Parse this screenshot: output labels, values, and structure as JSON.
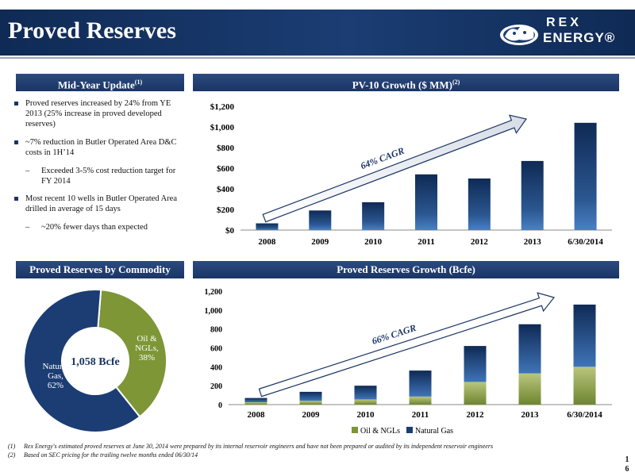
{
  "header": {
    "title": "Proved Reserves",
    "logo_line1": "REX",
    "logo_line2": "ENERGY®"
  },
  "sections": {
    "mid_year": "Mid-Year Update",
    "mid_year_sup": "(1)",
    "pv10": "PV-10 Growth ($ MM)",
    "pv10_sup": "(2)",
    "by_commodity": "Proved Reserves by Commodity",
    "reserves_growth": "Proved Reserves Growth (Bcfe)"
  },
  "bullets": [
    {
      "level": 1,
      "text": "Proved reserves increased by 24% from YE 2013 (25% increase in proved developed reserves)"
    },
    {
      "level": 1,
      "text": "~7% reduction in Butler Operated Area D&C costs in 1H’14"
    },
    {
      "level": 2,
      "text": "Exceeded 3-5% cost reduction target for FY 2014"
    },
    {
      "level": 1,
      "text": "Most recent 10 wells in Butler Operated Area drilled in average of 15 days"
    },
    {
      "level": 2,
      "text": "~20% fewer days than expected"
    }
  ],
  "chart_data": [
    {
      "type": "bar",
      "title": "PV-10 Growth ($ MM)",
      "categories": [
        "2008",
        "2009",
        "2010",
        "2011",
        "2012",
        "2013",
        "6/30/2014"
      ],
      "values": [
        65,
        190,
        270,
        540,
        500,
        670,
        1040
      ],
      "ylim": [
        0,
        1200
      ],
      "yticks": [
        "$0",
        "$200",
        "$400",
        "$600",
        "$800",
        "$1,000",
        "$1,200"
      ],
      "ytick_values": [
        0,
        200,
        400,
        600,
        800,
        1000,
        1200
      ],
      "annotation": "64% CAGR",
      "colors": {
        "bar_top": "#0f2a55",
        "bar_bottom": "#3b6fb3"
      }
    },
    {
      "type": "pie",
      "title": "Proved Reserves by Commodity",
      "center_label": "1,058 Bcfe",
      "slices": [
        {
          "label_line1": "Oil &",
          "label_line2": "NGLs,",
          "label_line3": "38%",
          "value": 38,
          "color": "#7e9636"
        },
        {
          "label_line1": "Natural",
          "label_line2": "Gas,",
          "label_line3": "62%",
          "value": 62,
          "color": "#1b3d73"
        }
      ]
    },
    {
      "type": "bar",
      "title": "Proved Reserves Growth (Bcfe)",
      "categories": [
        "2008",
        "2009",
        "2010",
        "2011",
        "2012",
        "2013",
        "6/30/2014"
      ],
      "series": [
        {
          "name": "Oil & NGLs",
          "values": [
            25,
            40,
            55,
            85,
            240,
            330,
            400
          ],
          "color": "#7e9636"
        },
        {
          "name": "Natural Gas",
          "values": [
            45,
            95,
            145,
            275,
            380,
            520,
            658
          ],
          "color": "#1b3d73"
        }
      ],
      "ylim": [
        0,
        1200
      ],
      "yticks": [
        "0",
        "200",
        "400",
        "600",
        "800",
        "1,000",
        "1,200"
      ],
      "ytick_values": [
        0,
        200,
        400,
        600,
        800,
        1000,
        1200
      ],
      "annotation": "66% CAGR",
      "legend": "bottom"
    }
  ],
  "footnotes": [
    {
      "num": "(1)",
      "text": "Rex Energy's estimated proved reserves at June 30, 2014 were prepared by its internal reservoir engineers and have not been prepared or audited by its independent reservoir engineers"
    },
    {
      "num": "(2)",
      "text": "Based on SEC pricing for the trailing twelve months ended 06/30/14"
    }
  ],
  "page_number": "16"
}
